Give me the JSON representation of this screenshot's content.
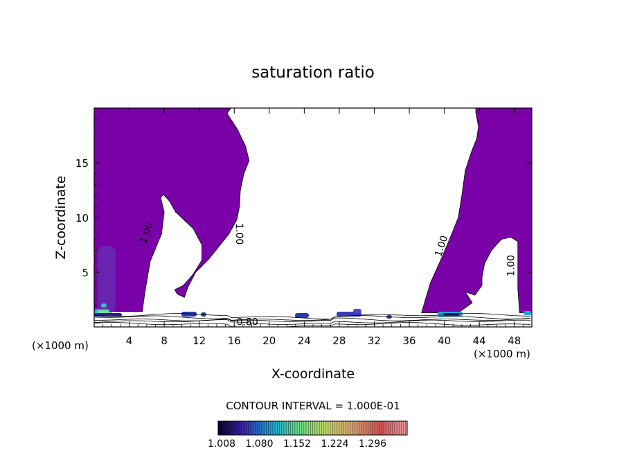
{
  "chart_data": {
    "type": "contour",
    "title": "saturation ratio",
    "xlabel": "X-coordinate",
    "ylabel": "Z-coordinate",
    "x_unit": "(×1000 m)",
    "x_unit_right": "(×1000 m)",
    "xlim": [
      0,
      50
    ],
    "ylim": [
      0,
      20
    ],
    "x_ticks": [
      4,
      8,
      12,
      16,
      20,
      24,
      28,
      32,
      36,
      40,
      44,
      48
    ],
    "y_ticks": [
      5,
      10,
      15
    ],
    "contour_labels": [
      {
        "text": "1.00",
        "x": 6.3,
        "y": 8.5,
        "angle": -70
      },
      {
        "text": "1.00",
        "x": 16.2,
        "y": 8.5,
        "angle": 90
      },
      {
        "text": "1.00",
        "x": 40.0,
        "y": 7.3,
        "angle": -72
      },
      {
        "text": "1.00",
        "x": 48.0,
        "y": 5.6,
        "angle": -90
      },
      {
        "text": "0.80",
        "x": 17.5,
        "y": 0.15,
        "angle": 0
      }
    ],
    "regions": [
      {
        "name": "left",
        "fill": "#7a00a8",
        "outline": [
          [
            0,
            20
          ],
          [
            15.6,
            20
          ],
          [
            15.2,
            19.5
          ],
          [
            16.4,
            18.0
          ],
          [
            17.3,
            16.5
          ],
          [
            17.7,
            15.2
          ],
          [
            17.1,
            14.0
          ],
          [
            16.7,
            12.5
          ],
          [
            16.6,
            11.0
          ],
          [
            16.3,
            9.8
          ],
          [
            15.4,
            8.5
          ],
          [
            14.5,
            7.6
          ],
          [
            13.1,
            6.2
          ],
          [
            11.6,
            5.0
          ],
          [
            10.7,
            3.6
          ],
          [
            10.3,
            2.7
          ],
          [
            9.5,
            3.0
          ],
          [
            9.2,
            3.4
          ],
          [
            10.2,
            3.8
          ],
          [
            11.3,
            4.8
          ],
          [
            12.3,
            6.1
          ],
          [
            12.3,
            7.5
          ],
          [
            11.3,
            9.0
          ],
          [
            9.3,
            10.5
          ],
          [
            8.6,
            11.5
          ],
          [
            7.9,
            12.1
          ],
          [
            7.6,
            11.8
          ],
          [
            8.0,
            10.5
          ],
          [
            7.7,
            8.5
          ],
          [
            6.4,
            6.0
          ],
          [
            5.8,
            3.2
          ],
          [
            5.5,
            1.4
          ],
          [
            0,
            1.4
          ]
        ]
      },
      {
        "name": "right",
        "fill": "#7a00a8",
        "outline": [
          [
            43.6,
            20
          ],
          [
            50,
            20
          ],
          [
            50,
            1.3
          ],
          [
            48.6,
            1.3
          ],
          [
            48.4,
            3.5
          ],
          [
            48.4,
            7.8
          ],
          [
            47.6,
            8.2
          ],
          [
            46.5,
            8.0
          ],
          [
            45.4,
            7.0
          ],
          [
            44.6,
            5.8
          ],
          [
            44.3,
            4.5
          ],
          [
            44.3,
            3.8
          ],
          [
            43.5,
            2.9
          ],
          [
            42.4,
            3.2
          ],
          [
            43.2,
            2.2
          ],
          [
            41.6,
            1.3
          ],
          [
            37.4,
            1.3
          ],
          [
            38.4,
            4.0
          ],
          [
            39.8,
            6.5
          ],
          [
            40.8,
            8.4
          ],
          [
            41.6,
            10.0
          ],
          [
            42.0,
            12.0
          ],
          [
            42.4,
            14.3
          ],
          [
            43.1,
            16.0
          ],
          [
            43.7,
            17.2
          ],
          [
            43.9,
            18.3
          ],
          [
            43.6,
            19.6
          ]
        ]
      }
    ],
    "colorbar": {
      "title": "CONTOUR INTERVAL = 1.000E-01",
      "tick_labels": [
        "1.008",
        "1.080",
        "1.152",
        "1.224",
        "1.296"
      ],
      "colors": [
        "#0a0030",
        "#3a2ab0",
        "#1aa8d8",
        "#6ee08e",
        "#c6dc6a",
        "#d8a070",
        "#d05858",
        "#e8a0a0"
      ]
    }
  }
}
